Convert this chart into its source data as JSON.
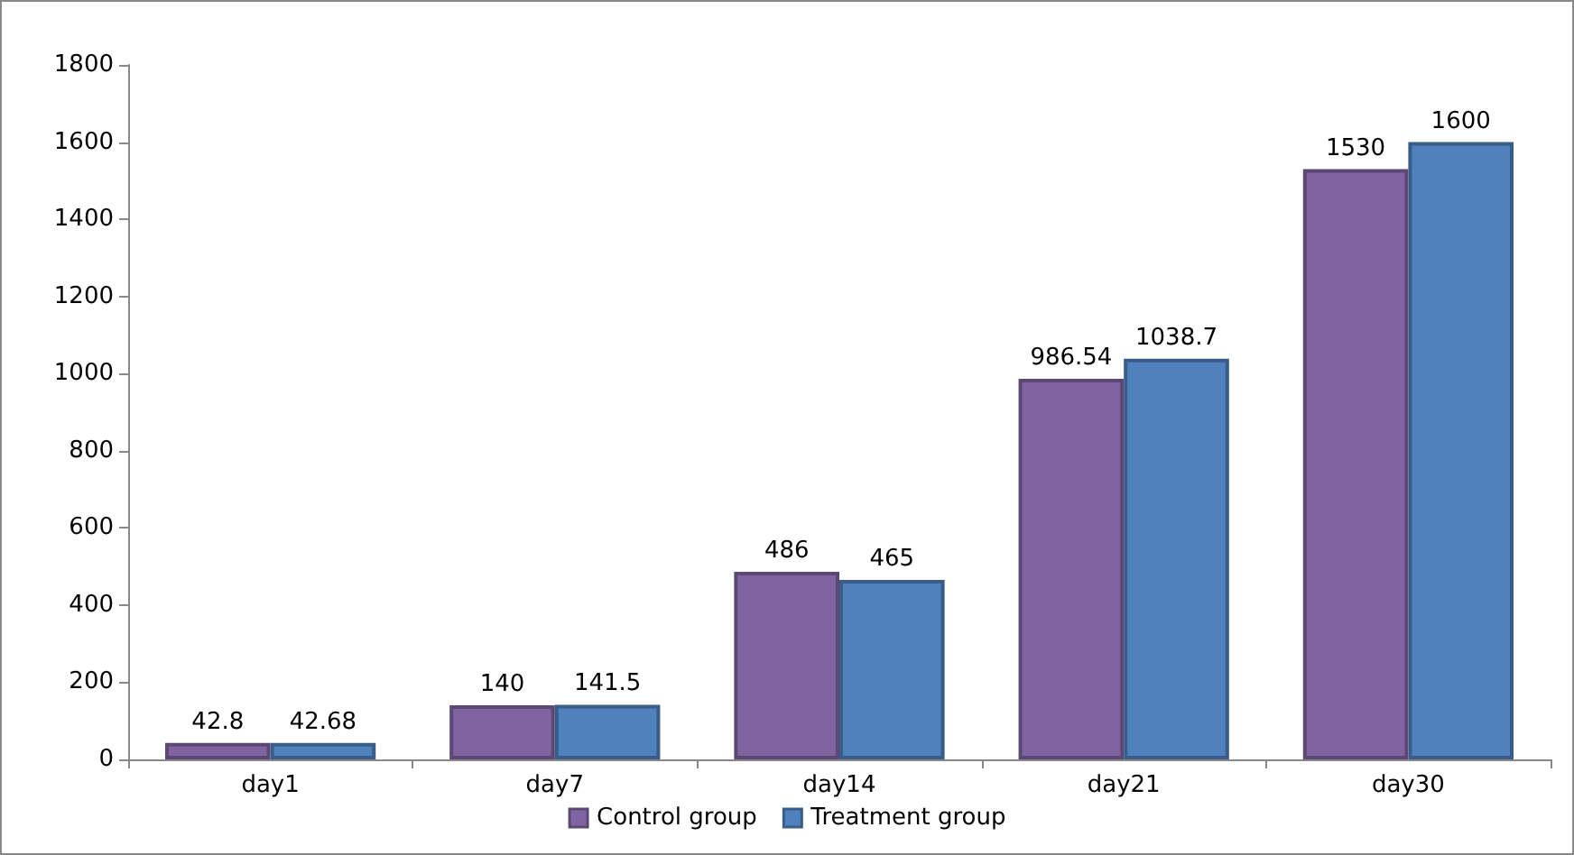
{
  "chart_data": {
    "type": "bar",
    "categories": [
      "day1",
      "day7",
      "day14",
      "day21",
      "day30"
    ],
    "series": [
      {
        "name": "Control group",
        "color": "#8064a2",
        "values": [
          42.8,
          140,
          486,
          986.54,
          1530
        ]
      },
      {
        "name": "Treatment group",
        "color": "#4f81bd",
        "values": [
          42.68,
          141.5,
          465,
          1038.7,
          1600
        ]
      }
    ],
    "ylim": [
      0,
      1800
    ],
    "yticks": [
      0,
      200,
      400,
      600,
      800,
      1000,
      1200,
      1400,
      1600,
      1800
    ],
    "grid": false,
    "legend": "bottom",
    "data_labels": true
  }
}
